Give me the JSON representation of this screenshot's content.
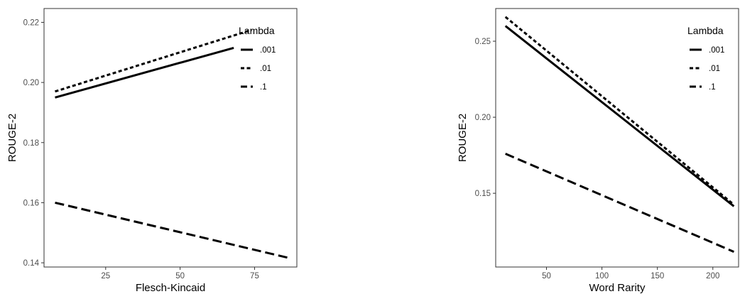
{
  "chart_data": [
    {
      "type": "line",
      "xlabel": "Flesch-Kincaid",
      "ylabel": "ROUGE-2",
      "xlim": [
        4.3,
        89.2
      ],
      "ylim": [
        0.1386,
        0.2246
      ],
      "xticks": [
        25,
        50,
        75
      ],
      "yticks": [
        0.14,
        0.16,
        0.18,
        0.2,
        0.22
      ],
      "xtick_labels": [
        "25",
        "50",
        "75"
      ],
      "ytick_labels": [
        "0.14",
        "0.16",
        "0.18",
        "0.20",
        "0.22"
      ],
      "grid": false,
      "legend": {
        "title": "Lambda",
        "placement": "top-right",
        "entries": [
          ".001",
          ".01",
          ".1"
        ]
      },
      "series": [
        {
          "name": ".001",
          "dash": "solid",
          "x": [
            8,
            68
          ],
          "y": [
            0.195,
            0.2115
          ]
        },
        {
          "name": ".01",
          "dash": "dotted",
          "x": [
            8,
            74
          ],
          "y": [
            0.197,
            0.2175
          ]
        },
        {
          "name": ".1",
          "dash": "dashed",
          "x": [
            8,
            87
          ],
          "y": [
            0.16,
            0.1415
          ]
        }
      ]
    },
    {
      "type": "line",
      "xlabel": "Word Rarity",
      "ylabel": "ROUGE-2",
      "xlim": [
        4.2,
        223.2
      ],
      "ylim": [
        0.1015,
        0.2715
      ],
      "xticks": [
        50,
        100,
        150,
        200
      ],
      "yticks": [
        0.15,
        0.2,
        0.25
      ],
      "xtick_labels": [
        "50",
        "100",
        "150",
        "200"
      ],
      "ytick_labels": [
        "0.15",
        "0.20",
        "0.25"
      ],
      "grid": false,
      "legend": {
        "title": "Lambda",
        "placement": "top-right",
        "entries": [
          ".001",
          ".01",
          ".1"
        ]
      },
      "series": [
        {
          "name": ".001",
          "dash": "solid",
          "x": [
            13,
            219
          ],
          "y": [
            0.26,
            0.1415
          ]
        },
        {
          "name": ".01",
          "dash": "dotted",
          "x": [
            13,
            219
          ],
          "y": [
            0.266,
            0.1425
          ]
        },
        {
          "name": ".1",
          "dash": "dashed",
          "x": [
            13,
            219
          ],
          "y": [
            0.176,
            0.1115
          ]
        }
      ]
    }
  ]
}
